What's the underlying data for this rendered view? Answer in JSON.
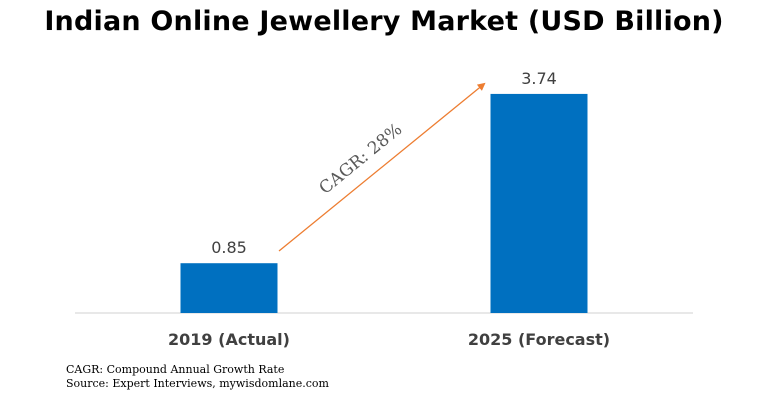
{
  "chart_data": {
    "type": "bar",
    "title": "Indian Online Jewellery Market (USD Billion)",
    "categories": [
      "2019 (Actual)",
      "2025 (Forecast)"
    ],
    "values": [
      0.85,
      3.74
    ],
    "value_labels": [
      "0.85",
      "3.74"
    ],
    "xlabel": "",
    "ylabel": "",
    "ylim": [
      0,
      4.08
    ],
    "grid": false,
    "bar_color": "#0070C0",
    "annotation": {
      "text": "CAGR: 28%",
      "arrow_color": "#ED7D31"
    }
  },
  "notes": [
    "CAGR: Compound Annual Growth Rate",
    "Source: Expert Interviews, mywisdomlane.com"
  ]
}
